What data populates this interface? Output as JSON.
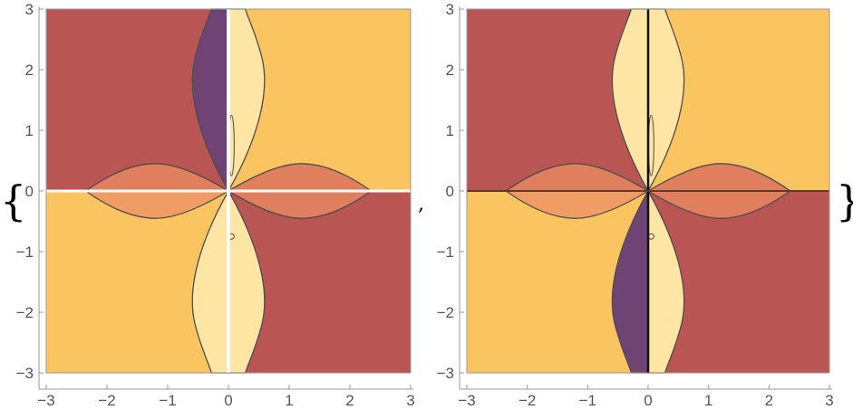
{
  "expression": {
    "open_brace": "{",
    "separator": ",",
    "close_brace": "}"
  },
  "colors": {
    "dark_red": "#b95553",
    "orange": "#fac460",
    "light_yellow": "#fee5a4",
    "purple": "#6f4474",
    "salmon": "#e07f5d",
    "salmon_light": "#f09d65",
    "contour": "#4d4d4d",
    "frame": "#999999"
  },
  "chart_data": [
    {
      "type": "contour",
      "title": "",
      "xlabel": "",
      "ylabel": "",
      "xlim": [
        -3,
        3
      ],
      "ylim": [
        -3,
        3
      ],
      "x_ticks": [
        -3,
        -2,
        -1,
        0,
        1,
        2,
        3
      ],
      "y_ticks": [
        -3,
        -2,
        -1,
        0,
        1,
        2,
        3
      ],
      "x_tick_labels": [
        "−3",
        "−2",
        "−1",
        "0",
        "1",
        "2",
        "3"
      ],
      "y_tick_labels": [
        "−3",
        "−2",
        "−1",
        "0",
        "1",
        "2",
        "3"
      ],
      "grid": false,
      "axis_gaps": true
    },
    {
      "type": "contour",
      "title": "",
      "xlabel": "",
      "ylabel": "",
      "xlim": [
        -3,
        3
      ],
      "ylim": [
        -3,
        3
      ],
      "x_ticks": [
        -3,
        -2,
        -1,
        0,
        1,
        2,
        3
      ],
      "y_ticks": [
        -3,
        -2,
        -1,
        0,
        1,
        2,
        3
      ],
      "x_tick_labels": [
        "−3",
        "−2",
        "−1",
        "0",
        "1",
        "2",
        "3"
      ],
      "y_tick_labels": [
        "−3",
        "−2",
        "−1",
        "0",
        "1",
        "2",
        "3"
      ],
      "grid": false,
      "axis_gaps": false
    }
  ]
}
